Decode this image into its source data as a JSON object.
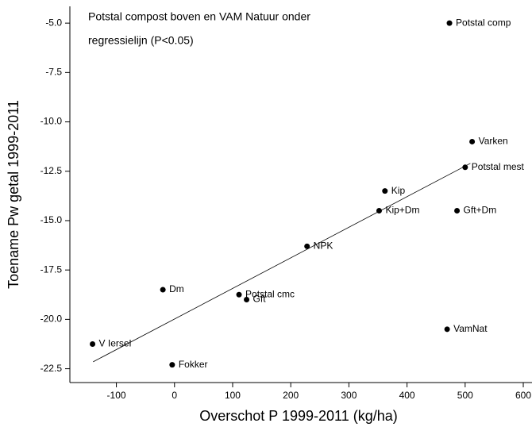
{
  "chart_data": {
    "type": "scatter",
    "title": [
      "Potstal compost boven en VAM Natuur onder",
      "regressielijn (P<0.05)"
    ],
    "x_label": "Overschot P 1999-2011 (kg/ha)",
    "y_label": "Toename Pw getal 1999-2011",
    "labels": [
      "Potstal comp",
      "Varken",
      "Potstal mest",
      "Kip",
      "Kip+Dm",
      "Gft+Dm",
      "NPK",
      "Dm",
      "Potstal cmc",
      "Gft",
      "VamNat",
      "V Iersel",
      "Fokker"
    ],
    "x": [
      473,
      512,
      500,
      362,
      352,
      486,
      228,
      -20,
      111,
      124,
      469,
      -141,
      -4
    ],
    "values": [
      -5.0,
      -11.0,
      -12.3,
      -13.5,
      -14.5,
      -14.5,
      -16.3,
      -18.5,
      -18.75,
      -19.0,
      -20.5,
      -21.25,
      -22.3
    ],
    "color": "#000000",
    "trendline": {
      "x": [
        -140,
        509
      ],
      "y": [
        -22.15,
        -12.1
      ]
    },
    "xlim": [
      -180,
      615
    ],
    "ylim": [
      -23.2,
      -4.15
    ],
    "xticks": [
      -100,
      0,
      100,
      200,
      300,
      400,
      500,
      600
    ],
    "yticks": [
      {
        "value": -5,
        "label": "-5.0"
      },
      -7.5,
      {
        "value": -10,
        "label": "-10.0"
      },
      -12.5,
      {
        "value": -15,
        "label": "-15.0"
      },
      -17.5,
      {
        "value": -20,
        "label": "-20.0"
      },
      -22.5
    ]
  }
}
